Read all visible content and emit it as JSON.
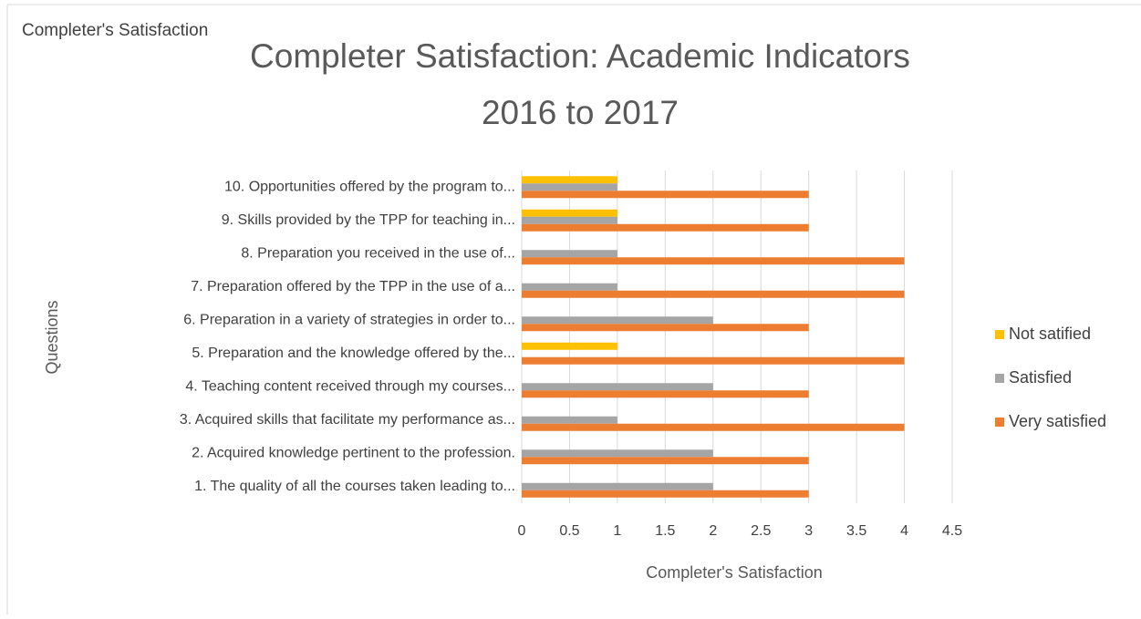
{
  "chart_data": {
    "type": "bar",
    "orientation": "horizontal",
    "header": "Completer's Satisfaction",
    "title": [
      "Completer Satisfaction: Academic Indicators",
      "2016 to 2017"
    ],
    "x_label": "Completer's Satisfaction",
    "y_label": "Questions",
    "categories": [
      "1.  The quality of all the courses taken leading to...",
      "2.  Acquired knowledge pertinent to the profession.",
      "3.  Acquired skills that facilitate my performance as...",
      "4.  Teaching content received through my courses...",
      "5.  Preparation and the knowledge offered by the...",
      "6.  Preparation in a variety of strategies in order to...",
      "7.  Preparation offered by the TPP in the use of a...",
      "8.  Preparation you received in the use of...",
      "9.  Skills provided by the TPP for teaching in...",
      "10. Opportunities offered by the program to..."
    ],
    "series": [
      {
        "name": "Not satified",
        "color": "#FFC000",
        "values": [
          0,
          0,
          0,
          0,
          1,
          0,
          0,
          0,
          1,
          1
        ]
      },
      {
        "name": "Satisfied",
        "color": "#A5A5A5",
        "values": [
          2,
          2,
          1,
          2,
          0,
          2,
          1,
          1,
          1,
          1
        ]
      },
      {
        "name": "Very satisfied",
        "color": "#ED7D31",
        "values": [
          3,
          3,
          4,
          3,
          4,
          3,
          4,
          4,
          3,
          3
        ]
      }
    ],
    "xlim": [
      0,
      4.5
    ],
    "xticks": [
      0,
      0.5,
      1,
      1.5,
      2,
      2.5,
      3,
      3.5,
      4,
      4.5
    ],
    "grid": true,
    "legend": "right"
  }
}
